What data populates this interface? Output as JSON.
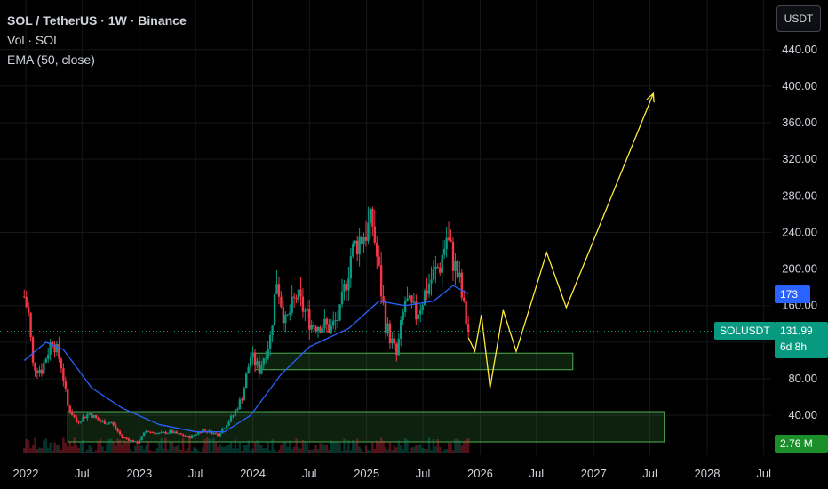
{
  "header": {
    "title": "SOL / TetherUS · 1W · Binance",
    "indicator_vol": "Vol · SOL",
    "indicator_ema": "EMA (50, close)"
  },
  "currency_button": "USDT",
  "tags": {
    "ema_value": "173",
    "symbol": "SOLUSDT",
    "last_price": "131.99",
    "countdown": "6d 8h",
    "volume": "2.76 M"
  },
  "colors": {
    "background": "#000000",
    "up": "#089981",
    "down": "#f23645",
    "ema": "#2962ff",
    "projection": "#ffeb3b",
    "zone": "#4caf50"
  },
  "chart_data": {
    "type": "candlestick",
    "timeframe": "1W",
    "y_axis": {
      "ticks": [
        40,
        80,
        120,
        160,
        200,
        240,
        280,
        320,
        360,
        400,
        440
      ],
      "tick_labels": [
        "40.00",
        "80.00",
        "120.00",
        "160.00",
        "200.00",
        "240.00",
        "280.00",
        "320.00",
        "360.00",
        "400.00",
        "440.00"
      ]
    },
    "x_axis": {
      "tick_labels": [
        "2022",
        "Jul",
        "2023",
        "Jul",
        "2024",
        "Jul",
        "2025",
        "Jul",
        "2026",
        "Jul",
        "2027",
        "Jul",
        "2028",
        "Jul"
      ]
    },
    "price_path": [
      {
        "d": "2021-12-27",
        "p": 170
      },
      {
        "d": "2022-01-10",
        "p": 150
      },
      {
        "d": "2022-01-24",
        "p": 95
      },
      {
        "d": "2022-02-21",
        "p": 90
      },
      {
        "d": "2022-03-28",
        "p": 125
      },
      {
        "d": "2022-04-25",
        "p": 95
      },
      {
        "d": "2022-05-16",
        "p": 50
      },
      {
        "d": "2022-06-13",
        "p": 33
      },
      {
        "d": "2022-07-25",
        "p": 42
      },
      {
        "d": "2022-08-29",
        "p": 33
      },
      {
        "d": "2022-10-03",
        "p": 32
      },
      {
        "d": "2022-11-07",
        "p": 16
      },
      {
        "d": "2022-12-26",
        "p": 10
      },
      {
        "d": "2023-01-23",
        "p": 23
      },
      {
        "d": "2023-03-06",
        "p": 20
      },
      {
        "d": "2023-04-10",
        "p": 22
      },
      {
        "d": "2023-06-12",
        "p": 16
      },
      {
        "d": "2023-07-24",
        "p": 24
      },
      {
        "d": "2023-09-11",
        "p": 19
      },
      {
        "d": "2023-10-30",
        "p": 40
      },
      {
        "d": "2023-11-27",
        "p": 60
      },
      {
        "d": "2023-12-25",
        "p": 105
      },
      {
        "d": "2024-01-22",
        "p": 90
      },
      {
        "d": "2024-02-26",
        "p": 125
      },
      {
        "d": "2024-03-18",
        "p": 190
      },
      {
        "d": "2024-04-15",
        "p": 140
      },
      {
        "d": "2024-05-20",
        "p": 170
      },
      {
        "d": "2024-07-08",
        "p": 140
      },
      {
        "d": "2024-08-05",
        "p": 140
      },
      {
        "d": "2024-09-09",
        "p": 135
      },
      {
        "d": "2024-10-07",
        "p": 150
      },
      {
        "d": "2024-11-11",
        "p": 215
      },
      {
        "d": "2024-12-02",
        "p": 230
      },
      {
        "d": "2025-01-20",
        "p": 250
      },
      {
        "d": "2025-02-10",
        "p": 195
      },
      {
        "d": "2025-03-03",
        "p": 140
      },
      {
        "d": "2025-04-07",
        "p": 105
      },
      {
        "d": "2025-05-05",
        "p": 165
      },
      {
        "d": "2025-06-09",
        "p": 150
      },
      {
        "d": "2025-07-21",
        "p": 185
      },
      {
        "d": "2025-08-25",
        "p": 205
      },
      {
        "d": "2025-09-15",
        "p": 235
      },
      {
        "d": "2025-10-06",
        "p": 210
      },
      {
        "d": "2025-10-27",
        "p": 185
      },
      {
        "d": "2025-11-10",
        "p": 155
      },
      {
        "d": "2025-11-24",
        "p": 132
      }
    ],
    "ema_path": [
      {
        "d": "2021-12-27",
        "p": 100
      },
      {
        "d": "2022-03-07",
        "p": 120
      },
      {
        "d": "2022-05-02",
        "p": 112
      },
      {
        "d": "2022-08-01",
        "p": 70
      },
      {
        "d": "2022-11-07",
        "p": 48
      },
      {
        "d": "2023-03-06",
        "p": 30
      },
      {
        "d": "2023-07-03",
        "p": 22
      },
      {
        "d": "2023-10-02",
        "p": 22
      },
      {
        "d": "2023-12-25",
        "p": 40
      },
      {
        "d": "2024-04-01",
        "p": 85
      },
      {
        "d": "2024-07-01",
        "p": 115
      },
      {
        "d": "2024-11-04",
        "p": 135
      },
      {
        "d": "2025-02-10",
        "p": 165
      },
      {
        "d": "2025-05-05",
        "p": 160
      },
      {
        "d": "2025-08-04",
        "p": 165
      },
      {
        "d": "2025-10-06",
        "p": 182
      },
      {
        "d": "2025-11-24",
        "p": 173
      }
    ],
    "projection_path": [
      {
        "d": "2025-11-24",
        "p": 125
      },
      {
        "d": "2025-12-15",
        "p": 110
      },
      {
        "d": "2026-01-05",
        "p": 150
      },
      {
        "d": "2026-02-02",
        "p": 70
      },
      {
        "d": "2026-03-16",
        "p": 155
      },
      {
        "d": "2026-04-27",
        "p": 110
      },
      {
        "d": "2026-08-03",
        "p": 218
      },
      {
        "d": "2026-10-05",
        "p": 158
      },
      {
        "d": "2027-07-12",
        "p": 392
      }
    ],
    "zones": [
      {
        "from": "2024-01-08",
        "to": "2026-10-26",
        "low": 90,
        "high": 108
      },
      {
        "from": "2022-05-16",
        "to": "2027-08-16",
        "low": 0,
        "high": 44
      }
    ],
    "last_price": 131.99,
    "ema_last": 173,
    "volume_last": "2.76 M"
  }
}
